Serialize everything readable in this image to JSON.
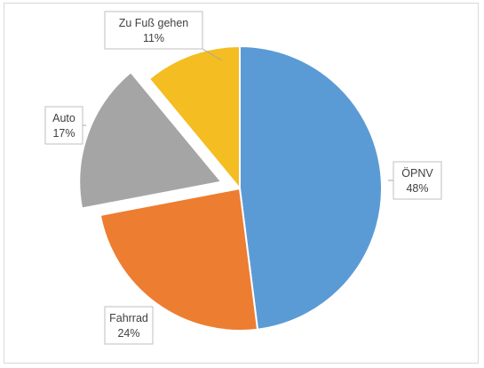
{
  "chart_data": {
    "type": "pie",
    "title": "",
    "slices": [
      {
        "label": "ÖPNV",
        "value": 48,
        "value_label": "48%",
        "color": "#5b9bd5",
        "exploded": false
      },
      {
        "label": "Fahrrad",
        "value": 24,
        "value_label": "24%",
        "color": "#ed7d31",
        "exploded": false
      },
      {
        "label": "Auto",
        "value": 17,
        "value_label": "17%",
        "color": "#a5a5a5",
        "exploded": true
      },
      {
        "label": "Zu Fuß gehen",
        "value": 11,
        "value_label": "11%",
        "color": "#f4bd21",
        "exploded": false
      }
    ],
    "legend": "none",
    "data_labels": "outside with callout boxes"
  }
}
